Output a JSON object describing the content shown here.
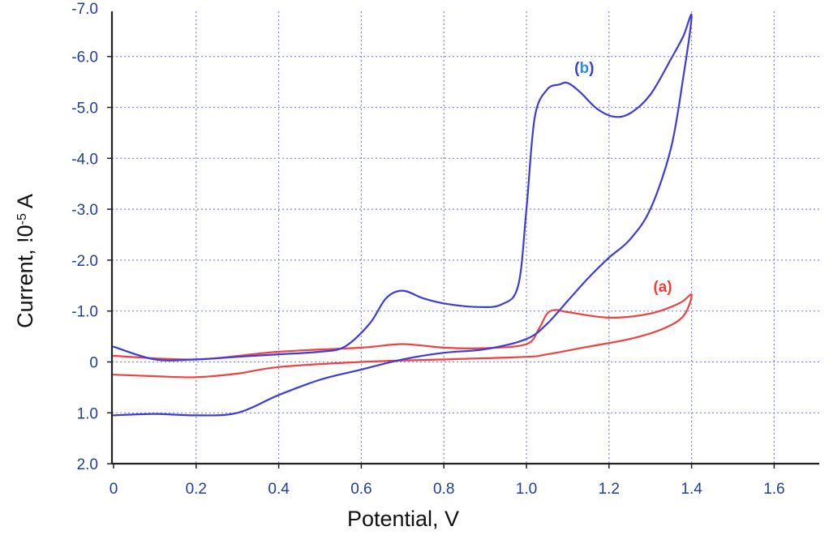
{
  "chart_data": {
    "type": "line",
    "title": "",
    "xlabel": "Potential, V",
    "ylabel": "Current, !0",
    "ylabel_sup": "-5",
    "ylabel_unit": " A",
    "xlim": [
      0,
      1.75
    ],
    "ylim": [
      2.0,
      -7.0
    ],
    "x_ticks": [
      "0",
      "0.2",
      "0.4",
      "0.6",
      "0.8",
      "1.0",
      "1.2",
      "1.4",
      "1.6"
    ],
    "y_ticks": [
      "-6.0",
      "-5.0",
      "-4.0",
      "-3.0",
      "-2.0",
      "-1.0",
      "0",
      "1.0",
      "2.0"
    ],
    "y_top_partial_tick": "-7.0",
    "grid": true,
    "colors": {
      "grid": "#7f86e8",
      "axis": "#222222",
      "tick_text": "#1f3f9a",
      "series_a": "#f0413f",
      "series_b": "#3c3cdc"
    },
    "series": [
      {
        "name": "(a)",
        "label_prefix": "(",
        "label_letter": "a",
        "label_suffix": ")",
        "label_at": [
          1.33,
          -1.38
        ],
        "color": "#f0413f",
        "letter_color": "#f0413f",
        "x": [
          0.0,
          0.2,
          0.4,
          0.6,
          0.7,
          0.8,
          0.9,
          1.0,
          1.03,
          1.05,
          1.07,
          1.1,
          1.2,
          1.3,
          1.37,
          1.4,
          1.38,
          1.33,
          1.25,
          1.15,
          1.05,
          1.0,
          0.8,
          0.6,
          0.4,
          0.3,
          0.2,
          0.1,
          0.0
        ],
        "y": [
          -0.12,
          -0.05,
          -0.2,
          -0.28,
          -0.35,
          -0.28,
          -0.27,
          -0.35,
          -0.65,
          -0.95,
          -1.02,
          -0.98,
          -0.87,
          -0.95,
          -1.15,
          -1.32,
          -0.9,
          -0.65,
          -0.45,
          -0.3,
          -0.15,
          -0.1,
          -0.05,
          0.0,
          0.1,
          0.23,
          0.3,
          0.28,
          0.25
        ]
      },
      {
        "name": "(b)",
        "label_prefix": "(",
        "label_letter": "b",
        "label_suffix": ")",
        "label_at": [
          1.14,
          -5.68
        ],
        "color": "#3c3cdc",
        "letter_color": "#2a8ed0",
        "x": [
          0.0,
          0.1,
          0.2,
          0.3,
          0.4,
          0.5,
          0.56,
          0.62,
          0.66,
          0.7,
          0.75,
          0.8,
          0.88,
          0.94,
          0.98,
          1.0,
          1.02,
          1.05,
          1.08,
          1.1,
          1.13,
          1.17,
          1.21,
          1.25,
          1.3,
          1.35,
          1.38,
          1.4,
          1.38,
          1.35,
          1.3,
          1.25,
          1.2,
          1.15,
          1.1,
          1.05,
          1.0,
          0.9,
          0.8,
          0.7,
          0.6,
          0.5,
          0.4,
          0.3,
          0.2,
          0.1,
          0.0
        ],
        "y": [
          -0.3,
          -0.05,
          -0.05,
          -0.1,
          -0.15,
          -0.2,
          -0.3,
          -0.75,
          -1.25,
          -1.4,
          -1.25,
          -1.15,
          -1.08,
          -1.13,
          -1.5,
          -3.0,
          -4.8,
          -5.35,
          -5.45,
          -5.48,
          -5.3,
          -4.98,
          -4.82,
          -4.88,
          -5.25,
          -5.95,
          -6.4,
          -6.8,
          -5.6,
          -4.2,
          -3.0,
          -2.4,
          -2.05,
          -1.65,
          -1.2,
          -0.75,
          -0.45,
          -0.25,
          -0.18,
          -0.05,
          0.15,
          0.35,
          0.65,
          1.0,
          1.05,
          1.02,
          1.05
        ]
      }
    ]
  }
}
